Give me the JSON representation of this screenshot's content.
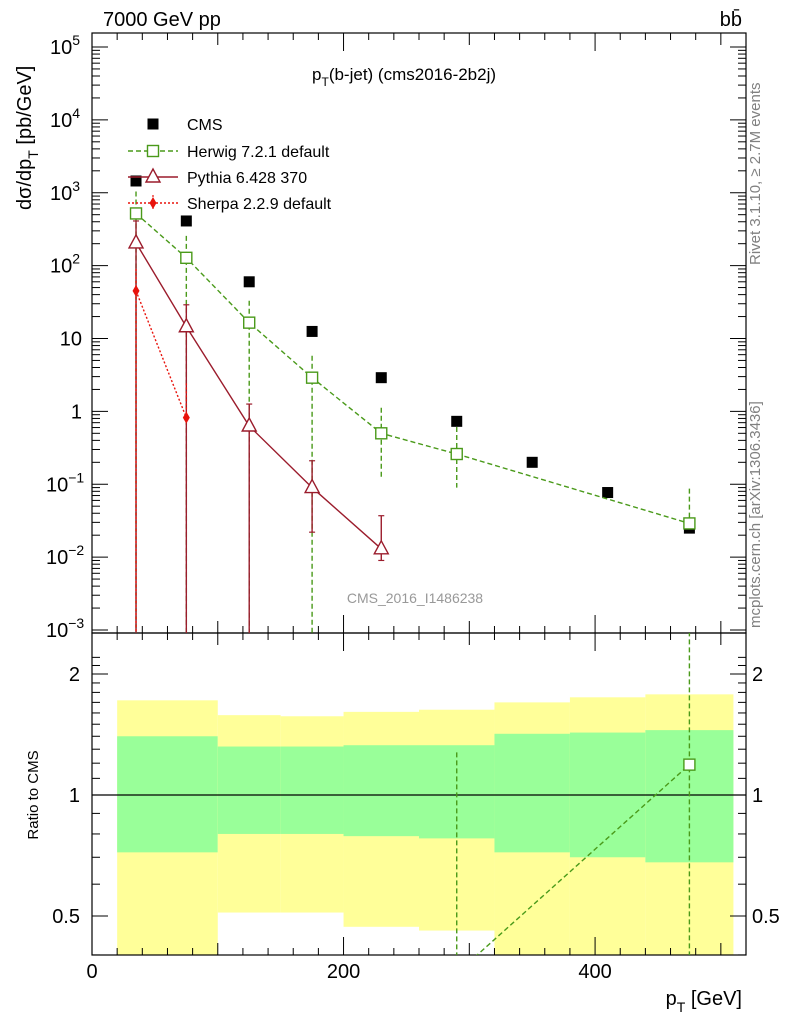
{
  "header": {
    "energy_label": "7000 GeV pp",
    "process_label": "bb̄"
  },
  "side_text": {
    "rivet": "Rivet 3.1.10, ≥ 2.7M events",
    "mcplots": "mcplots.cern.ch [arXiv:1306.3436]"
  },
  "chart_data": [
    {
      "type": "scatter",
      "panel": "main",
      "title": "p_T(b-jet) (cms2016-2b2j)",
      "title_main": "p",
      "title_sub": "T",
      "title_rest": "(b-jet) (cms2016-2b2j)",
      "ylabel": "dσ/dp_T [pb/GeV]",
      "ylabel_main": "dσ/dp",
      "ylabel_sub": "T",
      "ylabel_rest": " [pb/GeV]",
      "yscale": "log",
      "ylim": [
        0.001,
        150000
      ],
      "xlim": [
        0,
        520
      ],
      "y_ticks": [
        {
          "v": 100000.0,
          "base": "10",
          "exp": "5"
        },
        {
          "v": 10000.0,
          "base": "10",
          "exp": "4"
        },
        {
          "v": 1000.0,
          "base": "10",
          "exp": "3"
        },
        {
          "v": 100.0,
          "base": "10",
          "exp": "2"
        },
        {
          "v": 10,
          "base": "10",
          "exp": ""
        },
        {
          "v": 1,
          "base": "1",
          "exp": ""
        },
        {
          "v": 0.1,
          "base": "10",
          "exp": "−1"
        },
        {
          "v": 0.01,
          "base": "10",
          "exp": "−2"
        },
        {
          "v": 0.001,
          "base": "10",
          "exp": "−3"
        }
      ],
      "watermark": "CMS_2016_I1486238",
      "legend_position": "top-left",
      "series": [
        {
          "name": "CMS",
          "color": "#000000",
          "marker": "square-filled",
          "line": "none",
          "x": [
            35,
            75,
            125,
            175,
            230,
            290,
            350,
            410,
            475
          ],
          "y": [
            1450,
            410,
            60,
            12.5,
            2.9,
            0.73,
            0.2,
            0.077,
            0.025
          ]
        },
        {
          "name": "Herwig 7.2.1 default",
          "color": "#4a9a1a",
          "marker": "square-open",
          "line": "dashed",
          "x": [
            35,
            75,
            125,
            175,
            230,
            290,
            475
          ],
          "y": [
            520,
            128,
            16.5,
            2.9,
            0.5,
            0.26,
            0.029
          ],
          "yerr_low": [
            520,
            128,
            16.5,
            2.9,
            0.38,
            0.17,
            0.0005
          ],
          "yerr_high": [
            520,
            128,
            16.5,
            2.9,
            0.62,
            0.35,
            0.058
          ]
        },
        {
          "name": "Pythia 6.428 370",
          "color": "#9b1c2c",
          "marker": "triangle-open",
          "line": "solid",
          "x": [
            35,
            75,
            125,
            175,
            230
          ],
          "y": [
            205,
            14.5,
            0.63,
            0.09,
            0.013
          ],
          "yerr_low": [
            205,
            14.5,
            0.63,
            0.068,
            0.004
          ],
          "yerr_high": [
            205,
            14.5,
            0.63,
            0.12,
            0.024
          ]
        },
        {
          "name": "Sherpa 2.2.9 default",
          "color": "#e8130c",
          "marker": "diamond-filled",
          "line": "dotted",
          "x": [
            35,
            75
          ],
          "y": [
            45,
            0.82
          ],
          "yerr_low": [
            45,
            0.0005
          ],
          "yerr_high": [
            45,
            1.6
          ]
        }
      ]
    },
    {
      "type": "line",
      "panel": "ratio",
      "ylabel": "Ratio to CMS",
      "xlabel": "p_T [GeV]",
      "xlabel_main": "p",
      "xlabel_sub": "T",
      "xlabel_rest": " [GeV]",
      "xlim": [
        0,
        520
      ],
      "ylim": [
        0.35,
        2.35
      ],
      "x_ticks": [
        0,
        200,
        400
      ],
      "y_ticks": [
        0.5,
        1,
        2
      ],
      "reference_line": 1,
      "uncertainty_bands": [
        {
          "x_low": 20,
          "x_high": 100,
          "stat_low": 0.72,
          "stat_high": 1.4,
          "total_low": 0.33,
          "total_high": 1.72
        },
        {
          "x_low": 100,
          "x_high": 150,
          "stat_low": 0.8,
          "stat_high": 1.32,
          "total_low": 0.51,
          "total_high": 1.58
        },
        {
          "x_low": 150,
          "x_high": 200,
          "stat_low": 0.8,
          "stat_high": 1.32,
          "total_low": 0.51,
          "total_high": 1.57
        },
        {
          "x_low": 200,
          "x_high": 260,
          "stat_low": 0.79,
          "stat_high": 1.33,
          "total_low": 0.47,
          "total_high": 1.61
        },
        {
          "x_low": 260,
          "x_high": 320,
          "stat_low": 0.78,
          "stat_high": 1.33,
          "total_low": 0.46,
          "total_high": 1.63
        },
        {
          "x_low": 320,
          "x_high": 380,
          "stat_low": 0.72,
          "stat_high": 1.42,
          "total_low": 0.33,
          "total_high": 1.7
        },
        {
          "x_low": 380,
          "x_high": 440,
          "stat_low": 0.7,
          "stat_high": 1.43,
          "total_low": 0.33,
          "total_high": 1.75
        },
        {
          "x_low": 440,
          "x_high": 510,
          "stat_low": 0.68,
          "stat_high": 1.45,
          "total_low": 0.33,
          "total_high": 1.78
        }
      ],
      "band_colors": {
        "total": "#ffff99",
        "stat": "#99ff99"
      },
      "series": [
        {
          "name": "Herwig 7.2.1 default",
          "color": "#4a9a1a",
          "marker": "square-open",
          "line": "dashed",
          "x": [
            290,
            475
          ],
          "y": [
            0.36,
            1.19
          ],
          "yerr_low": [
            0.36,
            0.0
          ],
          "yerr_high": [
            0.36,
            2.25
          ]
        }
      ]
    }
  ]
}
